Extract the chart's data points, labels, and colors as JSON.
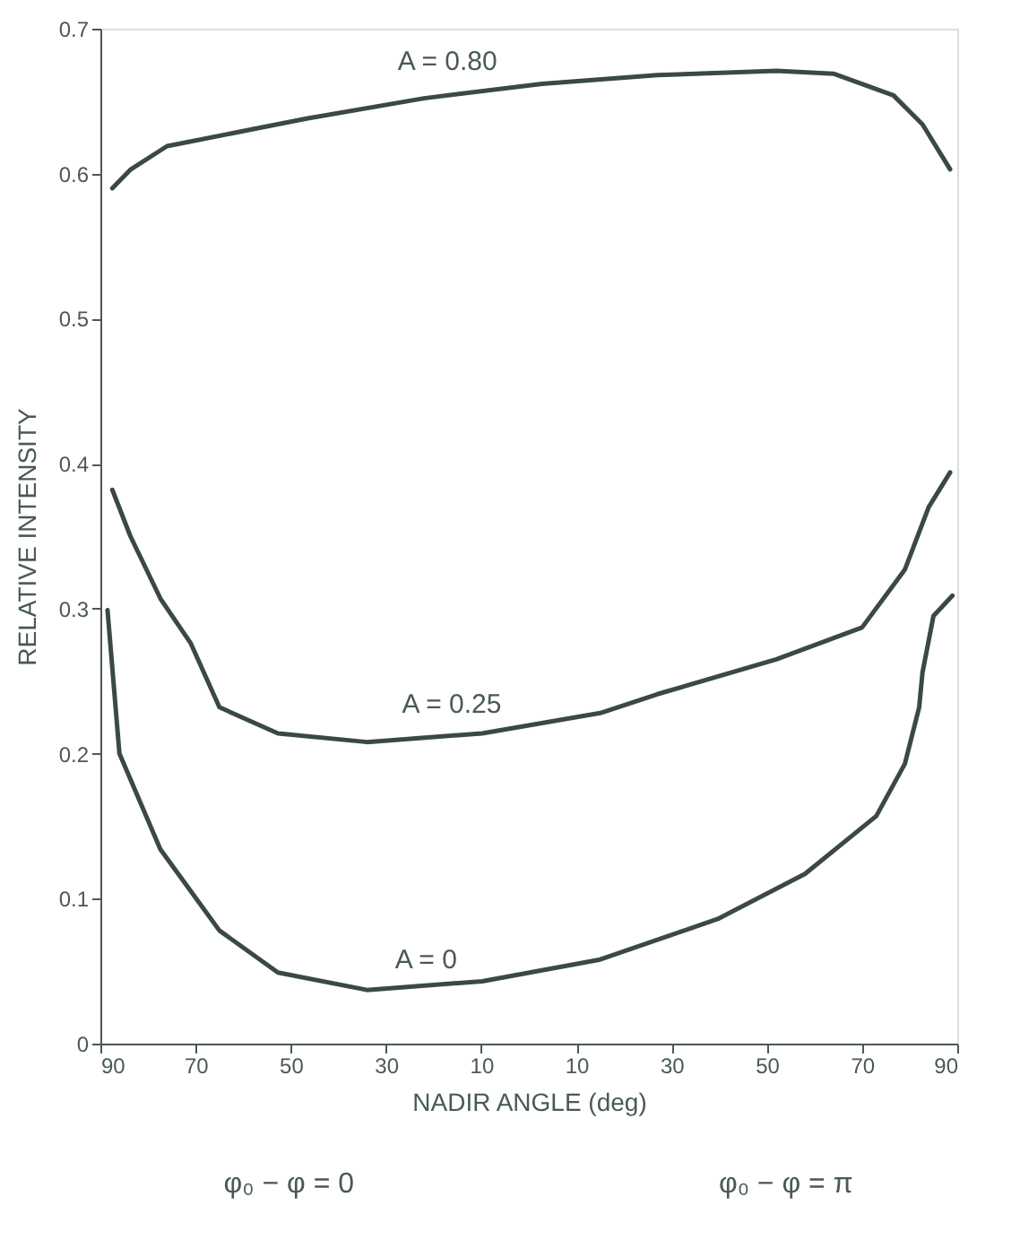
{
  "chart_data": {
    "type": "line",
    "xlabel": "NADIR ANGLE (deg)",
    "ylabel": "RELATIVE INTENSITY",
    "xlim": [
      -90,
      90
    ],
    "xticks": [
      {
        "value": -90,
        "label": "90"
      },
      {
        "value": -70,
        "label": "70"
      },
      {
        "value": -50,
        "label": "50"
      },
      {
        "value": -30,
        "label": "30"
      },
      {
        "value": -10,
        "label": "10"
      },
      {
        "value": 10,
        "label": "10"
      },
      {
        "value": 30,
        "label": "30"
      },
      {
        "value": 50,
        "label": "50"
      },
      {
        "value": 70,
        "label": "70"
      },
      {
        "value": 90,
        "label": "90"
      }
    ],
    "ylim": [
      0,
      0.7
    ],
    "yticks": [
      0,
      0.1,
      0.2,
      0.3,
      0.4,
      0.5,
      0.6,
      0.7
    ],
    "grid": false,
    "marker": "none",
    "line_style": "solid",
    "series": [
      {
        "color": "#3a4a40",
        "x": [
          -87.5,
          -83.6,
          -76,
          -46.7,
          -22,
          2.8,
          27,
          52,
          64,
          76.6,
          82.7,
          88.5
        ],
        "values": [
          0.59,
          0.603,
          0.619,
          0.638,
          0.652,
          0.662,
          0.668,
          0.671,
          0.669,
          0.654,
          0.634,
          0.603
        ]
      },
      {
        "color": "#3a4a40",
        "x": [
          -87.5,
          -83.7,
          -77.4,
          -71,
          -65,
          -52.7,
          -34,
          -9.8,
          15,
          27,
          52,
          70,
          79,
          84,
          88.5
        ],
        "values": [
          0.382,
          0.35,
          0.307,
          0.276,
          0.232,
          0.214,
          0.208,
          0.214,
          0.228,
          0.241,
          0.265,
          0.287,
          0.327,
          0.37,
          0.394
        ]
      },
      {
        "color": "#3a4a40",
        "x": [
          -88.5,
          -86,
          -77.4,
          -65,
          -52.7,
          -34,
          -9.8,
          15,
          39.7,
          58,
          73,
          79,
          82,
          82.7,
          85,
          89
        ],
        "values": [
          0.299,
          0.2,
          0.134,
          0.078,
          0.049,
          0.037,
          0.043,
          0.058,
          0.086,
          0.117,
          0.157,
          0.193,
          0.232,
          0.256,
          0.295,
          0.309
        ]
      }
    ],
    "annotations": [
      "A = 0.80",
      "A = 0.25",
      "A = 0",
      "φ₀ − φ = 0",
      "φ₀ − φ = π"
    ]
  }
}
